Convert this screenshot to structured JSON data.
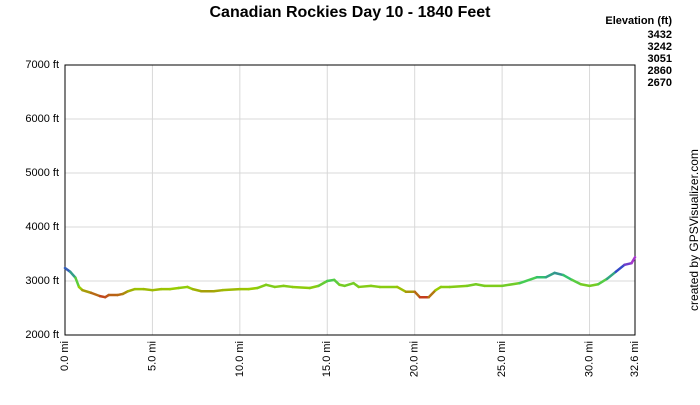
{
  "chart_data": {
    "type": "line",
    "title": "Canadian Rockies Day 10 - 1840 Feet",
    "credit": "created by GPSVisualizer.com",
    "legend": {
      "title": "Elevation (ft)",
      "position": "top-right",
      "stops": [
        {
          "value": 3432,
          "color": "#cc33cc"
        },
        {
          "value": 3242,
          "color": "#3344cc"
        },
        {
          "value": 3051,
          "color": "#33cc66"
        },
        {
          "value": 2860,
          "color": "#99cc00"
        },
        {
          "value": 2670,
          "color": "#cc2222"
        }
      ]
    },
    "grid": true,
    "xlim": [
      0,
      32.6
    ],
    "ylim": [
      2000,
      7000
    ],
    "xticks": [
      {
        "value": 0,
        "label": "0.0 mi"
      },
      {
        "value": 5,
        "label": "5.0 mi"
      },
      {
        "value": 10,
        "label": "10.0 mi"
      },
      {
        "value": 15,
        "label": "15.0 mi"
      },
      {
        "value": 20,
        "label": "20.0 mi"
      },
      {
        "value": 25,
        "label": "25.0 mi"
      },
      {
        "value": 30,
        "label": "30.0 mi"
      },
      {
        "value": 32.6,
        "label": "32.6 mi"
      }
    ],
    "yticks": [
      {
        "value": 2000,
        "label": "2000 ft"
      },
      {
        "value": 3000,
        "label": "3000 ft"
      },
      {
        "value": 4000,
        "label": "4000 ft"
      },
      {
        "value": 5000,
        "label": "5000 ft"
      },
      {
        "value": 6000,
        "label": "6000 ft"
      },
      {
        "value": 7000,
        "label": "7000 ft"
      }
    ],
    "x": [
      0,
      0.3,
      0.6,
      0.8,
      1,
      1.5,
      2,
      2.3,
      2.5,
      3,
      3.3,
      3.6,
      4,
      4.5,
      5,
      5.5,
      6,
      6.5,
      7,
      7.3,
      7.8,
      8.5,
      9,
      10,
      10.5,
      11,
      11.5,
      12,
      12.5,
      13,
      14,
      14.5,
      15,
      15.4,
      15.7,
      16,
      16.5,
      16.8,
      17.5,
      18,
      19,
      19.5,
      20,
      20.3,
      20.8,
      21.2,
      21.5,
      22,
      23,
      23.5,
      24,
      25,
      26,
      27,
      27.5,
      28,
      28.5,
      29,
      29.5,
      30,
      30.5,
      31,
      31.5,
      32,
      32.4,
      32.6
    ],
    "series": [
      {
        "values": [
          3240,
          3170,
          3060,
          2890,
          2830,
          2780,
          2720,
          2700,
          2740,
          2740,
          2760,
          2810,
          2850,
          2850,
          2830,
          2850,
          2850,
          2870,
          2890,
          2850,
          2810,
          2810,
          2830,
          2850,
          2850,
          2870,
          2930,
          2890,
          2910,
          2890,
          2870,
          2910,
          3000,
          3020,
          2930,
          2910,
          2960,
          2890,
          2910,
          2890,
          2890,
          2800,
          2800,
          2700,
          2700,
          2830,
          2890,
          2890,
          2910,
          2940,
          2910,
          2910,
          2960,
          3070,
          3070,
          3150,
          3110,
          3020,
          2940,
          2910,
          2940,
          3040,
          3170,
          3300,
          3330,
          3440
        ]
      }
    ]
  }
}
